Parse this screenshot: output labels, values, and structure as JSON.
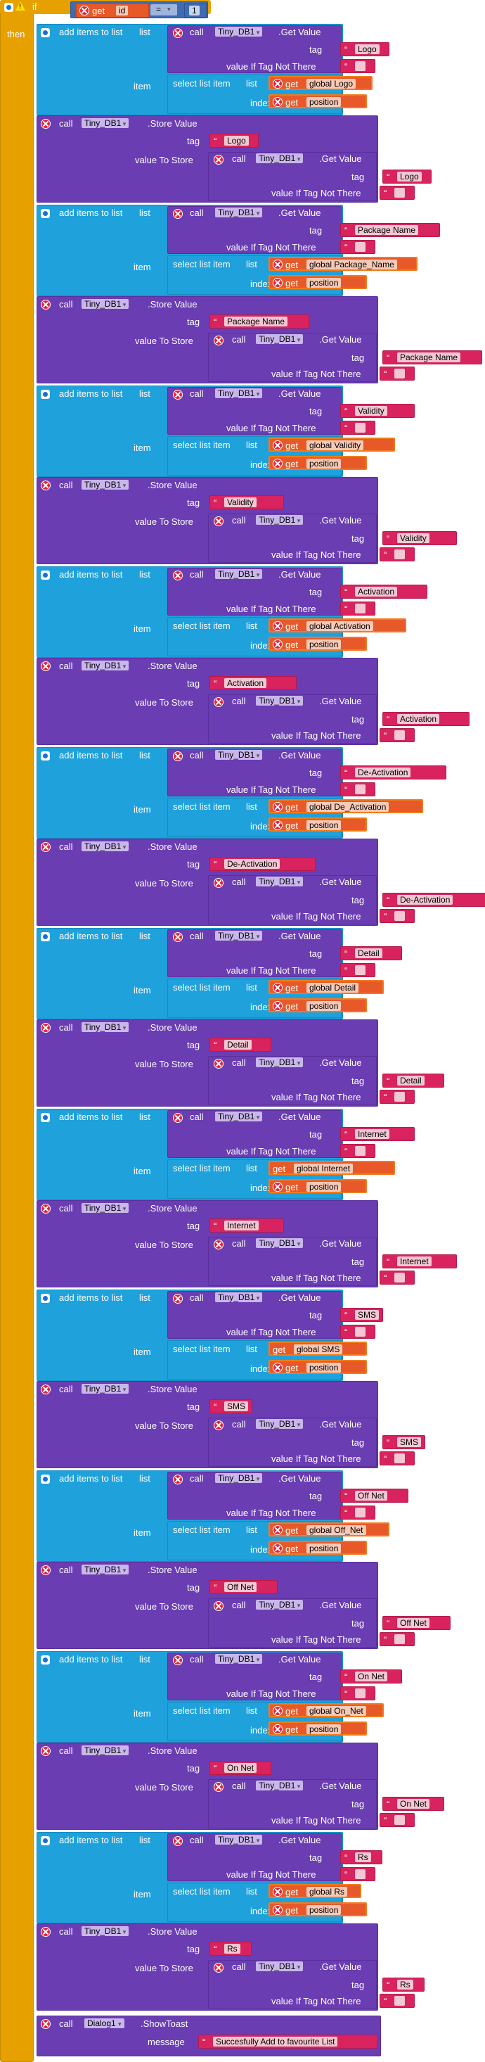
{
  "if_block": {
    "keyword": "if",
    "then": "then",
    "get": "get",
    "var": "id",
    "op": "=",
    "rhs": "1"
  },
  "labels": {
    "add_items": "add items to list",
    "list": "list",
    "item": "item",
    "call": "call",
    "get_value": ".Get Value",
    "store_value": ".Store Value",
    "tag": "tag",
    "value_if_not": "value If Tag Not There",
    "value_to_store": "value To Store",
    "select_item": "select list item",
    "index": "index",
    "get": "get",
    "position": "position",
    "component": "Tiny_DB1"
  },
  "groups": [
    {
      "tag": "Logo",
      "global": "global Logo",
      "global_is_orange_x": true
    },
    {
      "tag": "Package Name",
      "global": "global Package_Name",
      "global_is_orange_x": true
    },
    {
      "tag": "Validity",
      "global": "global Validity",
      "global_is_orange_x": true
    },
    {
      "tag": "Activation",
      "global": "global Activation",
      "global_is_orange_x": true
    },
    {
      "tag": "De-Activation",
      "global": "global De_Activation",
      "global_is_orange_x": true
    },
    {
      "tag": "Detail",
      "global": "global Detail",
      "global_is_orange_x": true
    },
    {
      "tag": "Internet",
      "global": "global Internet",
      "global_is_orange_x": false
    },
    {
      "tag": "SMS",
      "global": "global SMS",
      "global_is_orange_x": false
    },
    {
      "tag": "Off Net",
      "global": "global Off_Net",
      "global_is_orange_x": true
    },
    {
      "tag": "On Net",
      "global": "global On_Net",
      "global_is_orange_x": true
    },
    {
      "tag": "Rs",
      "global": "global Rs",
      "global_is_orange_x": true
    }
  ],
  "toast": {
    "call": "call",
    "component": "Dialog1",
    "method": ".ShowToast",
    "message_label": "message",
    "message": "Succesfully Add to favourite List"
  },
  "colors": {
    "if_block": "#e6a100",
    "add_items": "#1fa1dc",
    "tinydb": "#6a3db3",
    "text_string": "#d8235e",
    "variable": "#e8592a"
  }
}
